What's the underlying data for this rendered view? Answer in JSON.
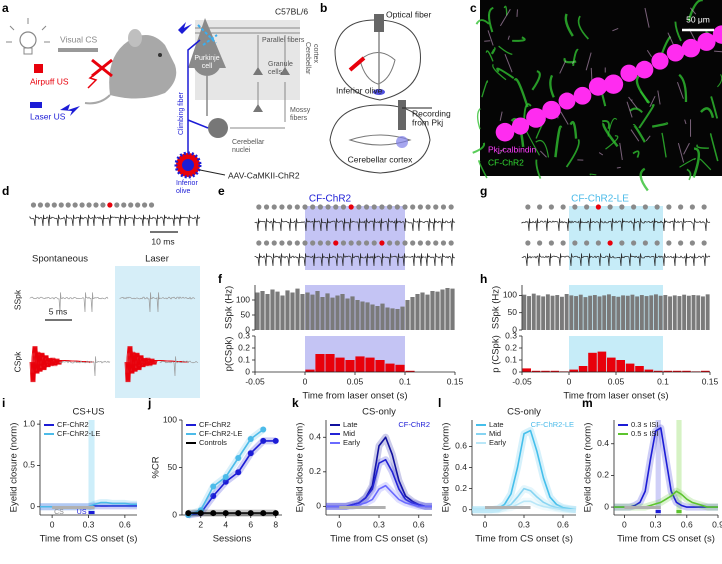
{
  "panels": [
    "a",
    "b",
    "c",
    "d",
    "e",
    "f",
    "g",
    "h",
    "i",
    "j",
    "k",
    "l",
    "m"
  ],
  "diagram_a": {
    "visual_cs": "Visual CS",
    "airpuff_us": "Airpuff US",
    "laser_us": "Laser US",
    "strain": "C57BL/6",
    "parallel_fibers": "Parallel fibers",
    "cerebellar_cortex": [
      "Cerebellar",
      "cortex"
    ],
    "purkinje_cell": [
      "Purkinje",
      "cell"
    ],
    "granule_cells": [
      "Granule",
      "cells"
    ],
    "mossy_fibers": [
      "Mossy",
      "fibers"
    ],
    "climbing_fiber": "Climbing fiber",
    "cerebellar_nuclei": [
      "Cerebellar",
      "nuclei"
    ],
    "inferior_olive": [
      "Inferior",
      "olive"
    ],
    "virus": "AAV-CaMKII-ChR2"
  },
  "diagram_b": {
    "optical_fiber": "Optical fiber",
    "inferior_olive": "Inferior olive",
    "recording": [
      "Recording",
      "from Pkj"
    ],
    "cerebellar_cortex": "Cerebellar cortex"
  },
  "image_c": {
    "scale": "50 μm",
    "stain_1": "Pkj-calbindin",
    "stain_2": "CF-ChR2"
  },
  "panel_d": {
    "scale_1": "10 ms",
    "spontaneous": "Spontaneous",
    "laser": "Laser",
    "sspk": "SSpk",
    "cspk": "CSpk",
    "scale_2": "5 ms"
  },
  "panel_e": {
    "title": "CF-ChR2"
  },
  "panel_g": {
    "title": "CF-ChR2-LE"
  },
  "chart_data": [
    {
      "type": "histogram",
      "y_label": "SSpk (Hz)",
      "color": "#7a7a7a",
      "bins": [
        -0.05,
        -0.045,
        -0.04,
        -0.035,
        -0.03,
        -0.025,
        -0.02,
        -0.015,
        -0.01,
        -0.005,
        0,
        0.005,
        0.01,
        0.015,
        0.02,
        0.025,
        0.03,
        0.035,
        0.04,
        0.045,
        0.05,
        0.055,
        0.06,
        0.065,
        0.07,
        0.075,
        0.08,
        0.085,
        0.09,
        0.095,
        0.1,
        0.105,
        0.11,
        0.115,
        0.12,
        0.125,
        0.13,
        0.135,
        0.14,
        0.145,
        0.15
      ],
      "values": [
        125,
        130,
        120,
        135,
        128,
        115,
        132,
        125,
        138,
        120,
        125,
        118,
        130,
        110,
        122,
        108,
        115,
        120,
        105,
        112,
        100,
        95,
        92,
        85,
        80,
        88,
        75,
        72,
        70,
        78,
        100,
        110,
        120,
        125,
        118,
        130,
        128,
        135,
        140,
        138
      ],
      "xlim": [
        -0.05,
        0.15
      ],
      "ylim": [
        0,
        150
      ],
      "yticks": [
        0,
        50,
        100
      ],
      "window": [
        0,
        0.1
      ],
      "window_color": "#c4c4f4"
    },
    {
      "type": "histogram",
      "y_label": "p(CSpk)",
      "x_label": "Time from laser onset (s)",
      "color": "#e8000b",
      "bins": [
        -0.05,
        -0.04,
        -0.03,
        -0.02,
        -0.01,
        0,
        0.01,
        0.02,
        0.03,
        0.04,
        0.05,
        0.06,
        0.07,
        0.08,
        0.09,
        0.1,
        0.11,
        0.12,
        0.13,
        0.14,
        0.15
      ],
      "values": [
        0,
        0,
        0,
        0,
        0,
        0.02,
        0.15,
        0.15,
        0.12,
        0.1,
        0.13,
        0.12,
        0.1,
        0.07,
        0.06,
        0.01,
        0,
        0,
        0,
        0
      ],
      "xlim": [
        -0.05,
        0.15
      ],
      "xticks": [
        -0.05,
        0,
        0.05,
        0.1,
        0.15
      ],
      "ylim": [
        0,
        0.3
      ],
      "yticks": [
        0,
        0.1,
        0.2,
        0.3
      ],
      "window": [
        0,
        0.1
      ],
      "window_color": "#c4c4f4"
    },
    {
      "type": "histogram",
      "y_label": "SSpk (Hz)",
      "color": "#7a7a7a",
      "bins": [
        -0.05,
        -0.045,
        -0.04,
        -0.035,
        -0.03,
        -0.025,
        -0.02,
        -0.015,
        -0.01,
        -0.005,
        0,
        0.005,
        0.01,
        0.015,
        0.02,
        0.025,
        0.03,
        0.035,
        0.04,
        0.045,
        0.05,
        0.055,
        0.06,
        0.065,
        0.07,
        0.075,
        0.08,
        0.085,
        0.09,
        0.095,
        0.1,
        0.105,
        0.11,
        0.115,
        0.12,
        0.125,
        0.13,
        0.135,
        0.14,
        0.145,
        0.15
      ],
      "values": [
        102,
        98,
        105,
        100,
        97,
        103,
        99,
        101,
        96,
        104,
        100,
        98,
        102,
        95,
        99,
        101,
        97,
        100,
        103,
        98,
        96,
        100,
        99,
        102,
        97,
        101,
        98,
        100,
        103,
        99,
        101,
        97,
        100,
        98,
        102,
        99,
        101,
        100,
        97,
        103
      ],
      "xlim": [
        -0.05,
        0.15
      ],
      "ylim": [
        0,
        130
      ],
      "yticks": [
        0,
        50,
        100
      ],
      "window": [
        0,
        0.1
      ],
      "window_color": "#c6ecf8"
    },
    {
      "type": "histogram",
      "y_label": "p (CSpk)",
      "x_label": "Time from laser onset (s)",
      "color": "#e8000b",
      "bins": [
        -0.05,
        -0.04,
        -0.03,
        -0.02,
        -0.01,
        0,
        0.01,
        0.02,
        0.03,
        0.04,
        0.05,
        0.06,
        0.07,
        0.08,
        0.09,
        0.1,
        0.11,
        0.12,
        0.13,
        0.14,
        0.15
      ],
      "values": [
        0.03,
        0.01,
        0.01,
        0.01,
        0.005,
        0.02,
        0.05,
        0.16,
        0.17,
        0.12,
        0.1,
        0.07,
        0.05,
        0.02,
        0.01,
        0.01,
        0.01,
        0.01,
        0.005,
        0.01
      ],
      "xlim": [
        -0.05,
        0.15
      ],
      "xticks": [
        -0.05,
        0,
        0.05,
        0.1,
        0.15
      ],
      "ylim": [
        0,
        0.3
      ],
      "yticks": [
        0,
        0.1,
        0.2,
        0.3
      ],
      "window": [
        0,
        0.1
      ],
      "window_color": "#c6ecf8"
    },
    {
      "type": "line",
      "title": "CS+US",
      "x_label": "Time from CS onset (s)",
      "y_label": "Eyelid closure (norm)",
      "legend": "upper left",
      "x": [
        -0.1,
        -0.05,
        0,
        0.05,
        0.1,
        0.15,
        0.2,
        0.25,
        0.3,
        0.35,
        0.4,
        0.45,
        0.5,
        0.55,
        0.6,
        0.65,
        0.7
      ],
      "series": [
        {
          "name": "CF-ChR2",
          "color": "#1c1cd6",
          "values": [
            0,
            0,
            0,
            0,
            0,
            0,
            0,
            0,
            0,
            0.01,
            0.01,
            0.01,
            0.01,
            0.01,
            0.01,
            0.01,
            0.01
          ]
        },
        {
          "name": "CF-ChR2-LE",
          "color": "#4cbbe9",
          "values": [
            0,
            0,
            0,
            0,
            0,
            0,
            0,
            0,
            0,
            0.03,
            0.05,
            0.05,
            0.04,
            0.04,
            0.04,
            0.03,
            0.03
          ]
        }
      ],
      "xlim": [
        -0.1,
        0.7
      ],
      "xticks": [
        0,
        0.3,
        0.6
      ],
      "ylim": [
        -0.1,
        1.05
      ],
      "yticks": [
        0,
        0.5,
        {
          "value": 1,
          "label": "1.0"
        }
      ],
      "shade": [
        0.3,
        0.35
      ],
      "shade_color": "#cdeefa",
      "cs_bar": [
        0,
        0.35
      ],
      "cs_label": "CS",
      "us_bar": [
        0.3,
        0.35
      ],
      "us_label": "US",
      "us_color": "#1c1cd6"
    },
    {
      "type": "line",
      "markers": true,
      "x_label": "Sessions",
      "y_label": "%CR",
      "legend": "upper left",
      "x": [
        1,
        2,
        3,
        4,
        5,
        6,
        7,
        8
      ],
      "series": [
        {
          "name": "CF-ChR2",
          "color": "#1c1cd6",
          "values": [
            0,
            2,
            20,
            35,
            45,
            65,
            78,
            78
          ]
        },
        {
          "name": "CF-ChR2-LE",
          "color": "#4cbbe9",
          "values": [
            0,
            5,
            30,
            40,
            60,
            80,
            90,
            null
          ]
        },
        {
          "name": "Controls",
          "color": "#000000",
          "values": [
            2,
            2,
            2,
            2,
            2,
            2,
            2,
            2
          ]
        }
      ],
      "xlim": [
        0.5,
        8.5
      ],
      "xticks": [
        2,
        4,
        6,
        8
      ],
      "ylim": [
        0,
        100
      ],
      "yticks": [
        0,
        50,
        100
      ]
    },
    {
      "type": "line",
      "title": "CS-only",
      "annotation": "CF-ChR2",
      "annotation_color": "#1c1cd6",
      "x_label": "Time from CS onset (s)",
      "y_label": "Eyelid closure (norm)",
      "legend": "upper left",
      "x": [
        -0.1,
        -0.05,
        0,
        0.05,
        0.1,
        0.15,
        0.2,
        0.25,
        0.3,
        0.35,
        0.4,
        0.45,
        0.5,
        0.55,
        0.6,
        0.65,
        0.7
      ],
      "series": [
        {
          "name": "Late",
          "color": "#10109e",
          "values": [
            0,
            0,
            0,
            0,
            0.01,
            0.02,
            0.05,
            0.12,
            0.35,
            0.4,
            0.3,
            0.15,
            0.06,
            0.03,
            0.01,
            0,
            0
          ]
        },
        {
          "name": "Mid",
          "color": "#2323d6",
          "values": [
            0,
            0,
            0,
            0,
            0.01,
            0.02,
            0.05,
            0.1,
            0.25,
            0.27,
            0.2,
            0.1,
            0.04,
            0.02,
            0.01,
            0,
            0
          ]
        },
        {
          "name": "Early",
          "color": "#6a6aff",
          "values": [
            0,
            0,
            0,
            0,
            0,
            0.01,
            0.02,
            0.04,
            0.1,
            0.12,
            0.08,
            0.04,
            0.02,
            0.01,
            0,
            0,
            0
          ]
        }
      ],
      "xlim": [
        -0.1,
        0.7
      ],
      "xticks": [
        0,
        0.3,
        0.6
      ],
      "ylim": [
        -0.05,
        0.5
      ],
      "yticks": [
        0,
        0.2,
        0.4
      ],
      "cs_bar": [
        0,
        0.35
      ]
    },
    {
      "type": "line",
      "title": "CS-only",
      "annotation": "CF-ChR2-LE",
      "annotation_color": "#4cbbe9",
      "x_label": "Time from CS onset (s)",
      "y_label": "Eyelid closure (norm)",
      "legend": "upper left",
      "x": [
        -0.1,
        -0.05,
        0,
        0.05,
        0.1,
        0.15,
        0.2,
        0.25,
        0.3,
        0.35,
        0.4,
        0.45,
        0.5,
        0.55,
        0.6,
        0.65,
        0.7
      ],
      "series": [
        {
          "name": "Late",
          "color": "#45bfeb",
          "values": [
            0,
            0,
            0,
            0,
            0.01,
            0.05,
            0.15,
            0.4,
            0.72,
            0.75,
            0.55,
            0.3,
            0.12,
            0.05,
            0.02,
            0.01,
            0
          ]
        },
        {
          "name": "Mid",
          "color": "#86d4f2",
          "values": [
            0,
            0,
            0,
            0,
            0,
            0.02,
            0.05,
            0.12,
            0.2,
            0.18,
            0.12,
            0.07,
            0.04,
            0.02,
            0.01,
            0,
            0
          ]
        },
        {
          "name": "Early",
          "color": "#b9e7f8",
          "values": [
            0,
            0,
            0,
            0,
            0,
            0.01,
            0.02,
            0.05,
            0.08,
            0.08,
            0.05,
            0.03,
            0.02,
            0.01,
            0,
            0,
            0
          ]
        }
      ],
      "xlim": [
        -0.1,
        0.7
      ],
      "xticks": [
        0,
        0.3,
        0.6
      ],
      "ylim": [
        -0.05,
        0.85
      ],
      "yticks": [
        0,
        0.2,
        0.4,
        0.6
      ],
      "cs_bar": [
        0,
        0.35
      ]
    },
    {
      "type": "line",
      "x_label": "Time from CS onset (s)",
      "y_label": "Eyelid closure (norm)",
      "legend": "upper left",
      "x": [
        -0.1,
        -0.05,
        0,
        0.05,
        0.1,
        0.15,
        0.2,
        0.25,
        0.3,
        0.35,
        0.4,
        0.45,
        0.5,
        0.55,
        0.6,
        0.65,
        0.7,
        0.75,
        0.8,
        0.85,
        0.9
      ],
      "series": [
        {
          "name": "0.3 s ISI",
          "color": "#1c1cd6",
          "values": [
            0,
            0,
            0,
            0,
            0.01,
            0.03,
            0.1,
            0.3,
            0.48,
            0.5,
            0.3,
            0.1,
            0.03,
            0.01,
            0,
            0,
            0,
            0,
            0,
            0,
            0
          ]
        },
        {
          "name": "0.5 s ISI",
          "color": "#5cc42e",
          "values": [
            0,
            0,
            0,
            0,
            0,
            0,
            0,
            0.01,
            0.02,
            0.03,
            0.05,
            0.07,
            0.1,
            0.08,
            0.05,
            0.03,
            0.02,
            0.01,
            0,
            0,
            0
          ]
        }
      ],
      "xlim": [
        -0.1,
        0.9
      ],
      "xticks": [
        0,
        0.3,
        0.6,
        0.9
      ],
      "ylim": [
        -0.05,
        0.55
      ],
      "yticks": [
        0,
        0.2,
        0.4
      ],
      "shades": [
        {
          "range": [
            0.3,
            0.35
          ],
          "color": "#cfcff7"
        },
        {
          "range": [
            0.5,
            0.55
          ],
          "color": "#d6f2c4"
        }
      ],
      "cs_bar": [
        0,
        0.35
      ],
      "us_bars": [
        {
          "range": [
            0.3,
            0.35
          ],
          "color": "#1c1cd6"
        },
        {
          "range": [
            0.5,
            0.55
          ],
          "color": "#5cc42e"
        }
      ]
    }
  ]
}
